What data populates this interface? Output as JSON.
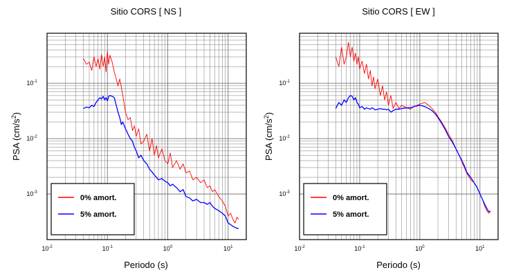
{
  "chart_data": [
    {
      "type": "line",
      "title": "Sitio CORS [ NS ]",
      "xlabel": "Periodo (s)",
      "ylabel_main": "PSA (cm/s",
      "ylabel_sup": "2",
      "ylabel_close": ")",
      "x_scale": "log",
      "y_scale": "log",
      "xlim": [
        0.01,
        20
      ],
      "ylim": [
        0.00015,
        0.8
      ],
      "grid": true,
      "legend_position": "bottom-left",
      "x_ticks": [
        {
          "base": "10",
          "exp": "-2",
          "value": 0.01
        },
        {
          "base": "10",
          "exp": "-1",
          "value": 0.1
        },
        {
          "base": "10",
          "exp": "0",
          "value": 1
        },
        {
          "base": "10",
          "exp": "1",
          "value": 10
        }
      ],
      "y_ticks": [
        {
          "base": "10",
          "exp": "-3",
          "value": 0.001
        },
        {
          "base": "10",
          "exp": "-2",
          "value": 0.01
        },
        {
          "base": "10",
          "exp": "-1",
          "value": 0.1
        }
      ],
      "series": [
        {
          "name": "0% amort.",
          "color": "#ff0000",
          "x": [
            0.04,
            0.045,
            0.05,
            0.055,
            0.06,
            0.065,
            0.07,
            0.075,
            0.08,
            0.085,
            0.09,
            0.095,
            0.1,
            0.105,
            0.11,
            0.12,
            0.13,
            0.14,
            0.15,
            0.16,
            0.17,
            0.18,
            0.2,
            0.22,
            0.24,
            0.26,
            0.28,
            0.3,
            0.33,
            0.36,
            0.4,
            0.45,
            0.5,
            0.55,
            0.6,
            0.65,
            0.7,
            0.8,
            0.9,
            1.0,
            1.1,
            1.2,
            1.4,
            1.6,
            1.8,
            2.0,
            2.3,
            2.6,
            3.0,
            3.5,
            4.0,
            4.5,
            5.0,
            5.5,
            6.0,
            7.0,
            8.0,
            9.0,
            10.0,
            11.0,
            12.0,
            13.0,
            14.0,
            15.0
          ],
          "y": [
            0.28,
            0.22,
            0.24,
            0.17,
            0.3,
            0.2,
            0.28,
            0.18,
            0.33,
            0.2,
            0.3,
            0.16,
            0.38,
            0.22,
            0.32,
            0.24,
            0.16,
            0.12,
            0.09,
            0.12,
            0.085,
            0.06,
            0.03,
            0.022,
            0.024,
            0.014,
            0.017,
            0.011,
            0.015,
            0.008,
            0.009,
            0.012,
            0.006,
            0.01,
            0.005,
            0.0075,
            0.0045,
            0.0065,
            0.004,
            0.0035,
            0.0055,
            0.003,
            0.004,
            0.0028,
            0.0035,
            0.0024,
            0.0026,
            0.0018,
            0.002,
            0.0016,
            0.0018,
            0.0013,
            0.0014,
            0.0011,
            0.0012,
            0.0009,
            0.00075,
            0.0006,
            0.0004,
            0.00045,
            0.00035,
            0.0003,
            0.00038,
            0.00035
          ]
        },
        {
          "name": "5% amort.",
          "color": "#0000ff",
          "x": [
            0.04,
            0.045,
            0.05,
            0.055,
            0.06,
            0.065,
            0.07,
            0.075,
            0.08,
            0.085,
            0.09,
            0.095,
            0.1,
            0.105,
            0.11,
            0.12,
            0.13,
            0.14,
            0.15,
            0.16,
            0.17,
            0.18,
            0.2,
            0.22,
            0.24,
            0.26,
            0.28,
            0.3,
            0.33,
            0.36,
            0.4,
            0.45,
            0.5,
            0.55,
            0.6,
            0.65,
            0.7,
            0.8,
            0.9,
            1.0,
            1.1,
            1.2,
            1.4,
            1.6,
            1.8,
            2.0,
            2.3,
            2.6,
            3.0,
            3.5,
            4.0,
            4.5,
            5.0,
            5.5,
            6.0,
            7.0,
            8.0,
            9.0,
            10.0,
            11.0,
            12.0,
            13.0,
            14.0,
            15.0
          ],
          "y": [
            0.035,
            0.037,
            0.036,
            0.04,
            0.038,
            0.045,
            0.05,
            0.055,
            0.052,
            0.058,
            0.05,
            0.055,
            0.048,
            0.058,
            0.06,
            0.058,
            0.055,
            0.04,
            0.03,
            0.024,
            0.018,
            0.02,
            0.015,
            0.012,
            0.01,
            0.009,
            0.007,
            0.006,
            0.0045,
            0.005,
            0.004,
            0.0035,
            0.0028,
            0.0025,
            0.0022,
            0.002,
            0.0018,
            0.0019,
            0.0017,
            0.0016,
            0.0014,
            0.0015,
            0.0013,
            0.0011,
            0.0012,
            0.0009,
            0.00085,
            0.00075,
            0.0008,
            0.0007,
            0.0007,
            0.00065,
            0.0007,
            0.0006,
            0.00055,
            0.0005,
            0.00045,
            0.0004,
            0.0003,
            0.00028,
            0.00026,
            0.00025,
            0.00024,
            0.00024
          ]
        }
      ]
    },
    {
      "type": "line",
      "title": "Sitio CORS [ EW ]",
      "xlabel": "Periodo (s)",
      "ylabel_main": "PSA (cm/s",
      "ylabel_sup": "2",
      "ylabel_close": ")",
      "x_scale": "log",
      "y_scale": "log",
      "xlim": [
        0.01,
        20
      ],
      "ylim": [
        0.00015,
        0.8
      ],
      "grid": true,
      "legend_position": "bottom-left",
      "x_ticks": [
        {
          "base": "10",
          "exp": "-2",
          "value": 0.01
        },
        {
          "base": "10",
          "exp": "-1",
          "value": 0.1
        },
        {
          "base": "10",
          "exp": "0",
          "value": 1
        },
        {
          "base": "10",
          "exp": "1",
          "value": 10
        }
      ],
      "y_ticks": [
        {
          "base": "10",
          "exp": "-3",
          "value": 0.001
        },
        {
          "base": "10",
          "exp": "-2",
          "value": 0.01
        },
        {
          "base": "10",
          "exp": "-1",
          "value": 0.1
        }
      ],
      "series": [
        {
          "name": "0% amort.",
          "color": "#ff0000",
          "x": [
            0.04,
            0.045,
            0.05,
            0.055,
            0.06,
            0.065,
            0.07,
            0.075,
            0.08,
            0.085,
            0.09,
            0.095,
            0.1,
            0.11,
            0.12,
            0.13,
            0.14,
            0.15,
            0.16,
            0.17,
            0.18,
            0.2,
            0.22,
            0.24,
            0.26,
            0.28,
            0.3,
            0.33,
            0.36,
            0.4,
            0.45,
            0.5,
            0.6,
            0.7,
            0.8,
            0.9,
            1.0,
            1.2,
            1.4,
            1.6,
            1.8,
            2.0,
            2.3,
            2.6,
            3.0,
            3.5,
            4.0,
            4.5,
            5.0,
            5.5,
            6.0,
            7.0,
            8.0,
            9.0,
            10.0,
            11.0,
            12.0,
            13.0,
            14.0,
            15.0
          ],
          "y": [
            0.3,
            0.2,
            0.45,
            0.22,
            0.3,
            0.55,
            0.3,
            0.45,
            0.25,
            0.35,
            0.22,
            0.3,
            0.18,
            0.25,
            0.15,
            0.22,
            0.12,
            0.17,
            0.09,
            0.13,
            0.08,
            0.12,
            0.06,
            0.09,
            0.05,
            0.07,
            0.04,
            0.06,
            0.035,
            0.045,
            0.035,
            0.04,
            0.036,
            0.034,
            0.038,
            0.04,
            0.042,
            0.045,
            0.04,
            0.035,
            0.03,
            0.025,
            0.02,
            0.016,
            0.012,
            0.009,
            0.0065,
            0.005,
            0.0038,
            0.003,
            0.0024,
            0.0018,
            0.0016,
            0.0013,
            0.001,
            0.0008,
            0.0006,
            0.0005,
            0.00045,
            0.0005
          ]
        },
        {
          "name": "5% amort.",
          "color": "#0000ff",
          "x": [
            0.04,
            0.045,
            0.05,
            0.055,
            0.06,
            0.065,
            0.07,
            0.075,
            0.08,
            0.085,
            0.09,
            0.095,
            0.1,
            0.11,
            0.12,
            0.13,
            0.14,
            0.15,
            0.16,
            0.17,
            0.18,
            0.2,
            0.22,
            0.24,
            0.26,
            0.28,
            0.3,
            0.33,
            0.36,
            0.4,
            0.45,
            0.5,
            0.6,
            0.7,
            0.8,
            0.9,
            1.0,
            1.2,
            1.4,
            1.6,
            1.8,
            2.0,
            2.3,
            2.6,
            3.0,
            3.5,
            4.0,
            4.5,
            5.0,
            5.5,
            6.0,
            7.0,
            8.0,
            9.0,
            10.0,
            11.0,
            12.0,
            13.0,
            14.0,
            15.0
          ],
          "y": [
            0.035,
            0.045,
            0.04,
            0.05,
            0.045,
            0.055,
            0.06,
            0.058,
            0.05,
            0.055,
            0.045,
            0.042,
            0.036,
            0.038,
            0.034,
            0.036,
            0.035,
            0.034,
            0.036,
            0.035,
            0.033,
            0.034,
            0.035,
            0.034,
            0.034,
            0.033,
            0.034,
            0.03,
            0.032,
            0.034,
            0.034,
            0.035,
            0.036,
            0.036,
            0.038,
            0.039,
            0.04,
            0.038,
            0.035,
            0.032,
            0.028,
            0.024,
            0.019,
            0.015,
            0.011,
            0.0085,
            0.0065,
            0.005,
            0.004,
            0.0032,
            0.0025,
            0.002,
            0.0016,
            0.0013,
            0.001,
            0.0008,
            0.00065,
            0.00055,
            0.00048,
            0.00048
          ]
        }
      ]
    }
  ]
}
